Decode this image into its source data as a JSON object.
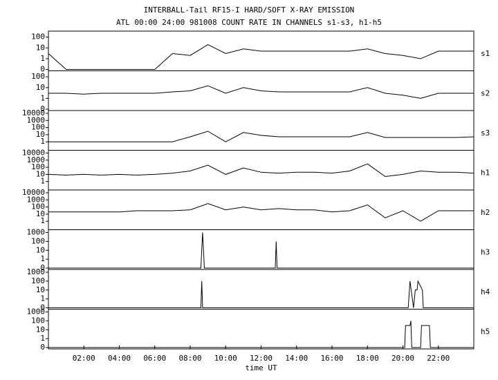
{
  "chart_data": [
    {
      "type": "line",
      "title": "INTERBALL-Tail RF15-I HARD/SOFT X-RAY EMISSION",
      "subtitle": "ATL 00:00 24:00 981008  COUNT RATE IN CHANNELS s1-s3, h1-h5",
      "yscale": "symlog",
      "xlim": [
        0,
        24
      ],
      "ylim": [
        0,
        200
      ],
      "yticks": [
        0,
        1,
        10,
        100
      ],
      "x": [
        0,
        1,
        2,
        3,
        4,
        5,
        6,
        7,
        8,
        9,
        10,
        11,
        12,
        13,
        14,
        15,
        16,
        17,
        18,
        19,
        20,
        21,
        22,
        23,
        24
      ],
      "series": [
        {
          "name": "s1",
          "color": "#000000",
          "values": [
            3,
            0,
            0,
            0,
            0,
            0,
            0,
            3,
            2,
            20,
            3,
            8,
            5,
            5,
            5,
            5,
            5,
            5,
            8,
            3,
            2,
            1,
            5,
            5,
            5
          ]
        }
      ]
    },
    {
      "type": "line",
      "yscale": "symlog",
      "xlim": [
        0,
        24
      ],
      "ylim": [
        0,
        200
      ],
      "yticks": [
        0,
        1,
        10,
        100
      ],
      "x": [
        0,
        1,
        2,
        3,
        4,
        5,
        6,
        7,
        8,
        9,
        10,
        11,
        12,
        13,
        14,
        15,
        16,
        17,
        18,
        19,
        20,
        21,
        22,
        23,
        24
      ],
      "series": [
        {
          "name": "s2",
          "color": "#000000",
          "values": [
            3,
            3,
            2.5,
            3,
            3,
            3,
            3,
            4,
            5,
            15,
            3,
            10,
            5,
            4,
            4,
            4,
            4,
            4,
            10,
            3,
            2,
            1,
            3,
            3,
            3
          ]
        }
      ]
    },
    {
      "type": "line",
      "yscale": "symlog",
      "xlim": [
        0,
        24
      ],
      "ylim": [
        0,
        10000
      ],
      "yticks": [
        1,
        10,
        100,
        1000,
        10000
      ],
      "x": [
        0,
        1,
        2,
        3,
        4,
        5,
        6,
        7,
        8,
        9,
        10,
        11,
        12,
        13,
        14,
        15,
        16,
        17,
        18,
        19,
        20,
        21,
        22,
        23,
        24
      ],
      "series": [
        {
          "name": "s3",
          "color": "#000000",
          "values": [
            1,
            1,
            1,
            1,
            1,
            1,
            1,
            1,
            5,
            30,
            1,
            20,
            8,
            5,
            5,
            5,
            5,
            5,
            20,
            4,
            4,
            4,
            4,
            4,
            5
          ]
        }
      ]
    },
    {
      "type": "line",
      "yscale": "symlog",
      "xlim": [
        0,
        24
      ],
      "ylim": [
        0,
        10000
      ],
      "yticks": [
        1,
        10,
        100,
        1000,
        10000
      ],
      "x": [
        0,
        1,
        2,
        3,
        4,
        5,
        6,
        7,
        8,
        9,
        10,
        11,
        12,
        13,
        14,
        15,
        16,
        17,
        18,
        19,
        20,
        21,
        22,
        23,
        24
      ],
      "series": [
        {
          "name": "h1",
          "color": "#000000",
          "values": [
            10,
            8,
            10,
            8,
            10,
            8,
            10,
            15,
            30,
            200,
            10,
            80,
            20,
            15,
            20,
            20,
            15,
            30,
            300,
            5,
            10,
            30,
            20,
            20,
            15
          ]
        }
      ]
    },
    {
      "type": "line",
      "yscale": "symlog",
      "xlim": [
        0,
        24
      ],
      "ylim": [
        0,
        10000
      ],
      "yticks": [
        1,
        10,
        100,
        1000,
        10000
      ],
      "x": [
        0,
        1,
        2,
        3,
        4,
        5,
        6,
        7,
        8,
        9,
        10,
        11,
        12,
        13,
        14,
        15,
        16,
        17,
        18,
        19,
        20,
        21,
        22,
        23,
        24
      ],
      "series": [
        {
          "name": "h2",
          "color": "#000000",
          "values": [
            20,
            20,
            20,
            20,
            20,
            30,
            30,
            30,
            40,
            300,
            40,
            100,
            40,
            60,
            40,
            40,
            20,
            30,
            200,
            3,
            30,
            1,
            30,
            30,
            30
          ]
        }
      ]
    },
    {
      "type": "line",
      "yscale": "symlog",
      "xlim": [
        0,
        24
      ],
      "ylim": [
        0,
        1000
      ],
      "yticks": [
        0,
        1,
        10,
        100,
        1000
      ],
      "x": [
        0,
        8.6,
        8.7,
        8.8,
        12.8,
        12.85,
        12.9,
        24
      ],
      "series": [
        {
          "name": "h3",
          "color": "#000000",
          "values": [
            0,
            0,
            1000,
            0,
            0,
            100,
            0,
            0
          ]
        }
      ]
    },
    {
      "type": "line",
      "yscale": "symlog",
      "xlim": [
        0,
        24
      ],
      "ylim": [
        0,
        1000
      ],
      "yticks": [
        0,
        1,
        10,
        100,
        1000
      ],
      "x": [
        0,
        8.6,
        8.65,
        8.7,
        20.3,
        20.4,
        20.6,
        20.7,
        20.8,
        20.85,
        21.1,
        21.15,
        24
      ],
      "series": [
        {
          "name": "h4",
          "color": "#000000",
          "values": [
            0,
            0,
            100,
            0,
            0,
            100,
            0,
            10,
            10,
            100,
            10,
            0,
            0
          ]
        }
      ]
    },
    {
      "type": "line",
      "yscale": "symlog",
      "xlim": [
        0,
        24
      ],
      "ylim": [
        0,
        1000
      ],
      "yticks": [
        0,
        1,
        10,
        100,
        1000
      ],
      "x": [
        0,
        20.1,
        20.15,
        20.4,
        20.45,
        20.5,
        21,
        21.05,
        21.5,
        21.55,
        24
      ],
      "series": [
        {
          "name": "h5",
          "color": "#000000",
          "values": [
            0,
            0,
            30,
            30,
            100,
            0,
            0,
            30,
            30,
            0,
            0
          ]
        }
      ],
      "xlabel": "time UT",
      "xticks": [
        {
          "value": 2,
          "label": "02:00"
        },
        {
          "value": 4,
          "label": "04:00"
        },
        {
          "value": 6,
          "label": "06:00"
        },
        {
          "value": 8,
          "label": "08:00"
        },
        {
          "value": 10,
          "label": "10:00"
        },
        {
          "value": 12,
          "label": "12:00"
        },
        {
          "value": 14,
          "label": "14:00"
        },
        {
          "value": 16,
          "label": "16:00"
        },
        {
          "value": 18,
          "label": "18:00"
        },
        {
          "value": 20,
          "label": "20:00"
        },
        {
          "value": 22,
          "label": "22:00"
        }
      ]
    }
  ]
}
